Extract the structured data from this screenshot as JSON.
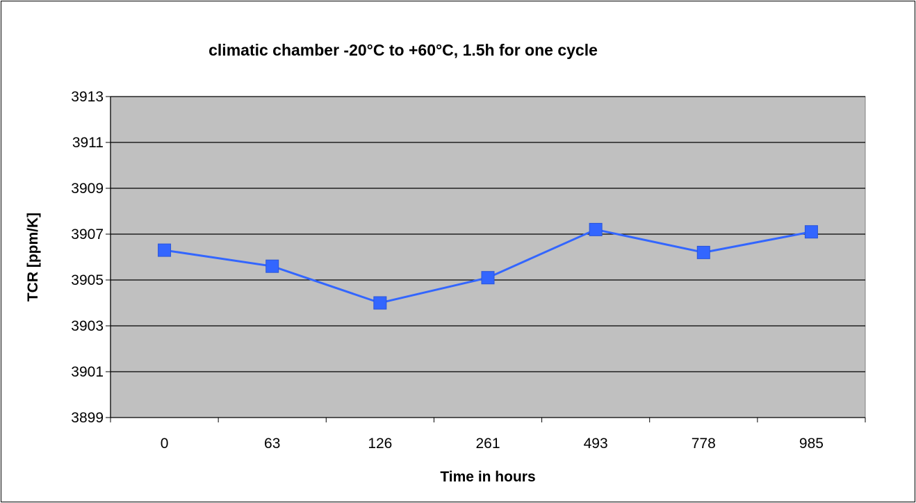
{
  "chart_data": {
    "type": "line",
    "title": "climatic chamber -20°C to +60°C, 1.5h for one cycle",
    "xlabel": "Time in hours",
    "ylabel": "TCR [ppm/K]",
    "categories": [
      "0",
      "63",
      "126",
      "261",
      "493",
      "778",
      "985"
    ],
    "series": [
      {
        "values": [
          3906.3,
          3905.6,
          3904.0,
          3905.1,
          3907.2,
          3906.2,
          3907.1
        ]
      }
    ],
    "ylim": [
      3899,
      3913
    ],
    "yticks": [
      3899,
      3901,
      3903,
      3905,
      3907,
      3909,
      3911,
      3913
    ],
    "grid": true,
    "legend": "none",
    "colors": {
      "plot_background": "#c0c0c0",
      "series_line": "#3366ff",
      "series_marker": "#3366ff",
      "gridline": "#000000"
    }
  }
}
